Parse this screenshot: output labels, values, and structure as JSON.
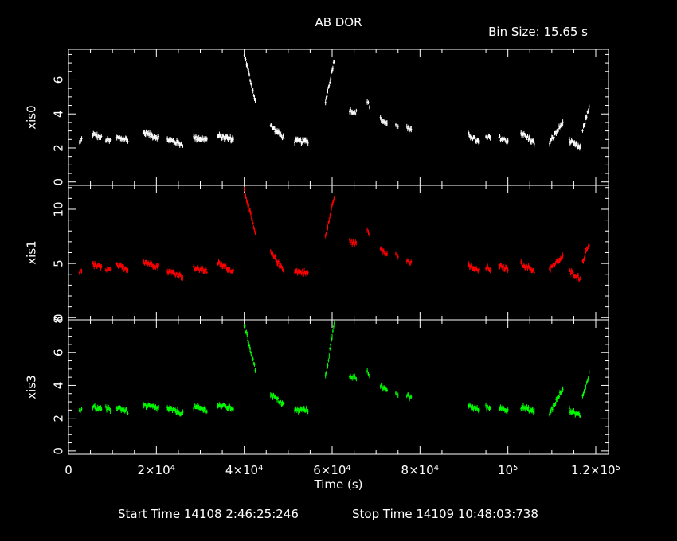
{
  "title": "AB DOR",
  "bin_size": "Bin Size: 15.65 s",
  "start_time": "Start Time 14108  2:46:25:246",
  "stop_time": "Stop Time 14109 10:48:03:738",
  "x_ticks": [
    {
      "v": 0,
      "base": "0",
      "exp": ""
    },
    {
      "v": 20000,
      "base": "2×10",
      "exp": "4"
    },
    {
      "v": 40000,
      "base": "4×10",
      "exp": "4"
    },
    {
      "v": 60000,
      "base": "6×10",
      "exp": "4"
    },
    {
      "v": 80000,
      "base": "8×10",
      "exp": "4"
    },
    {
      "v": 100000,
      "base": "10",
      "exp": "5"
    },
    {
      "v": 120000,
      "base": "1.2×10",
      "exp": "5"
    }
  ],
  "chart_data": {
    "type": "scatter",
    "xlabel": "Time (s)",
    "xlim": [
      0,
      120000
    ],
    "colors": {
      "xis0": "#ffffff",
      "xis1": "#ff0000",
      "xis3": "#00ff00"
    },
    "panels": [
      {
        "name": "xis0",
        "ylabel": "xis0",
        "ylim": [
          -0.2,
          7.8
        ],
        "yticks": [
          0,
          2,
          4,
          6
        ],
        "segments": [
          {
            "x": [
              2500,
              3000
            ],
            "y": [
              2.3,
              2.5
            ]
          },
          {
            "x": [
              5500,
              7500
            ],
            "y": [
              2.8,
              2.6
            ]
          },
          {
            "x": [
              8500,
              9500
            ],
            "y": [
              2.5,
              2.4
            ]
          },
          {
            "x": [
              11000,
              13500
            ],
            "y": [
              2.6,
              2.5
            ]
          },
          {
            "x": [
              17000,
              20500
            ],
            "y": [
              2.9,
              2.6
            ]
          },
          {
            "x": [
              22500,
              26000
            ],
            "y": [
              2.5,
              2.2
            ]
          },
          {
            "x": [
              28500,
              31500
            ],
            "y": [
              2.6,
              2.5
            ]
          },
          {
            "x": [
              34000,
              37500
            ],
            "y": [
              2.7,
              2.5
            ]
          },
          {
            "x": [
              40000,
              42500
            ],
            "y": [
              7.5,
              4.8
            ]
          },
          {
            "x": [
              46000,
              49000
            ],
            "y": [
              3.3,
              2.6
            ]
          },
          {
            "x": [
              51500,
              54500
            ],
            "y": [
              2.4,
              2.4
            ]
          },
          {
            "x": [
              58500,
              60500
            ],
            "y": [
              4.7,
              7.2
            ]
          },
          {
            "x": [
              64000,
              65500
            ],
            "y": [
              4.2,
              4.1
            ]
          },
          {
            "x": [
              68000,
              68500
            ],
            "y": [
              4.7,
              4.5
            ]
          },
          {
            "x": [
              71000,
              72500
            ],
            "y": [
              3.7,
              3.4
            ]
          },
          {
            "x": [
              74500,
              75000
            ],
            "y": [
              3.4,
              3.3
            ]
          },
          {
            "x": [
              77000,
              78000
            ],
            "y": [
              3.2,
              3.0
            ]
          },
          {
            "x": [
              91000,
              93500
            ],
            "y": [
              2.8,
              2.3
            ]
          },
          {
            "x": [
              95000,
              96000
            ],
            "y": [
              2.6,
              2.6
            ]
          },
          {
            "x": [
              98000,
              100000
            ],
            "y": [
              2.6,
              2.4
            ]
          },
          {
            "x": [
              103000,
              106000
            ],
            "y": [
              2.9,
              2.3
            ]
          },
          {
            "x": [
              109500,
              112500
            ],
            "y": [
              2.3,
              3.5
            ]
          },
          {
            "x": [
              114000,
              116500
            ],
            "y": [
              2.4,
              2.0
            ]
          },
          {
            "x": [
              117000,
              118500
            ],
            "y": [
              3.0,
              4.4
            ]
          }
        ]
      },
      {
        "name": "xis1",
        "ylabel": "xis1",
        "ylim": [
          -0.2,
          12.2
        ],
        "yticks": [
          0,
          5,
          10
        ],
        "segments": [
          {
            "x": [
              2500,
              3000
            ],
            "y": [
              4.3,
              4.4
            ]
          },
          {
            "x": [
              5500,
              7500
            ],
            "y": [
              4.9,
              4.6
            ]
          },
          {
            "x": [
              8500,
              9500
            ],
            "y": [
              4.5,
              4.4
            ]
          },
          {
            "x": [
              11000,
              13500
            ],
            "y": [
              4.8,
              4.5
            ]
          },
          {
            "x": [
              17000,
              20500
            ],
            "y": [
              5.2,
              4.7
            ]
          },
          {
            "x": [
              22500,
              26000
            ],
            "y": [
              4.3,
              3.8
            ]
          },
          {
            "x": [
              28500,
              31500
            ],
            "y": [
              4.6,
              4.3
            ]
          },
          {
            "x": [
              34000,
              37500
            ],
            "y": [
              5.0,
              4.3
            ]
          },
          {
            "x": [
              40000,
              42500
            ],
            "y": [
              11.8,
              7.8
            ]
          },
          {
            "x": [
              46000,
              49000
            ],
            "y": [
              6.0,
              4.4
            ]
          },
          {
            "x": [
              51500,
              54500
            ],
            "y": [
              4.3,
              4.1
            ]
          },
          {
            "x": [
              58500,
              60500
            ],
            "y": [
              7.5,
              11.2
            ]
          },
          {
            "x": [
              64000,
              65500
            ],
            "y": [
              7.0,
              6.8
            ]
          },
          {
            "x": [
              68000,
              68500
            ],
            "y": [
              8.2,
              7.6
            ]
          },
          {
            "x": [
              71000,
              72500
            ],
            "y": [
              6.5,
              5.9
            ]
          },
          {
            "x": [
              74500,
              75000
            ],
            "y": [
              5.8,
              5.6
            ]
          },
          {
            "x": [
              77000,
              78000
            ],
            "y": [
              5.3,
              5.0
            ]
          },
          {
            "x": [
              91000,
              93500
            ],
            "y": [
              4.8,
              4.3
            ]
          },
          {
            "x": [
              95000,
              96000
            ],
            "y": [
              4.6,
              4.5
            ]
          },
          {
            "x": [
              98000,
              100000
            ],
            "y": [
              4.7,
              4.5
            ]
          },
          {
            "x": [
              103000,
              106000
            ],
            "y": [
              5.0,
              4.3
            ]
          },
          {
            "x": [
              109500,
              112500
            ],
            "y": [
              4.5,
              5.6
            ]
          },
          {
            "x": [
              114000,
              116500
            ],
            "y": [
              4.3,
              3.6
            ]
          },
          {
            "x": [
              117000,
              118500
            ],
            "y": [
              5.2,
              6.8
            ]
          }
        ]
      },
      {
        "name": "xis3",
        "ylabel": "xis3",
        "ylim": [
          -0.2,
          8.0
        ],
        "yticks": [
          0,
          2,
          4,
          6,
          8
        ],
        "segments": [
          {
            "x": [
              2500,
              3000
            ],
            "y": [
              2.5,
              2.6
            ]
          },
          {
            "x": [
              5500,
              7500
            ],
            "y": [
              2.7,
              2.5
            ]
          },
          {
            "x": [
              8500,
              9500
            ],
            "y": [
              2.6,
              2.5
            ]
          },
          {
            "x": [
              11000,
              13500
            ],
            "y": [
              2.7,
              2.4
            ]
          },
          {
            "x": [
              17000,
              20500
            ],
            "y": [
              2.8,
              2.6
            ]
          },
          {
            "x": [
              22500,
              26000
            ],
            "y": [
              2.6,
              2.3
            ]
          },
          {
            "x": [
              28500,
              31500
            ],
            "y": [
              2.7,
              2.5
            ]
          },
          {
            "x": [
              34000,
              37500
            ],
            "y": [
              2.8,
              2.6
            ]
          },
          {
            "x": [
              40000,
              42500
            ],
            "y": [
              7.7,
              5.0
            ]
          },
          {
            "x": [
              46000,
              49000
            ],
            "y": [
              3.5,
              2.8
            ]
          },
          {
            "x": [
              51500,
              54500
            ],
            "y": [
              2.5,
              2.5
            ]
          },
          {
            "x": [
              58500,
              60500
            ],
            "y": [
              4.5,
              7.8
            ]
          },
          {
            "x": [
              64000,
              65500
            ],
            "y": [
              4.6,
              4.4
            ]
          },
          {
            "x": [
              68000,
              68500
            ],
            "y": [
              5.0,
              4.6
            ]
          },
          {
            "x": [
              71000,
              72500
            ],
            "y": [
              4.0,
              3.6
            ]
          },
          {
            "x": [
              74500,
              75000
            ],
            "y": [
              3.6,
              3.4
            ]
          },
          {
            "x": [
              77000,
              78000
            ],
            "y": [
              3.4,
              3.2
            ]
          },
          {
            "x": [
              91000,
              93500
            ],
            "y": [
              2.8,
              2.5
            ]
          },
          {
            "x": [
              95000,
              96000
            ],
            "y": [
              2.7,
              2.6
            ]
          },
          {
            "x": [
              98000,
              100000
            ],
            "y": [
              2.7,
              2.5
            ]
          },
          {
            "x": [
              103000,
              106000
            ],
            "y": [
              2.7,
              2.4
            ]
          },
          {
            "x": [
              109500,
              112500
            ],
            "y": [
              2.3,
              3.8
            ]
          },
          {
            "x": [
              114000,
              116500
            ],
            "y": [
              2.5,
              2.2
            ]
          },
          {
            "x": [
              117000,
              118500
            ],
            "y": [
              3.3,
              4.7
            ]
          }
        ]
      }
    ]
  }
}
